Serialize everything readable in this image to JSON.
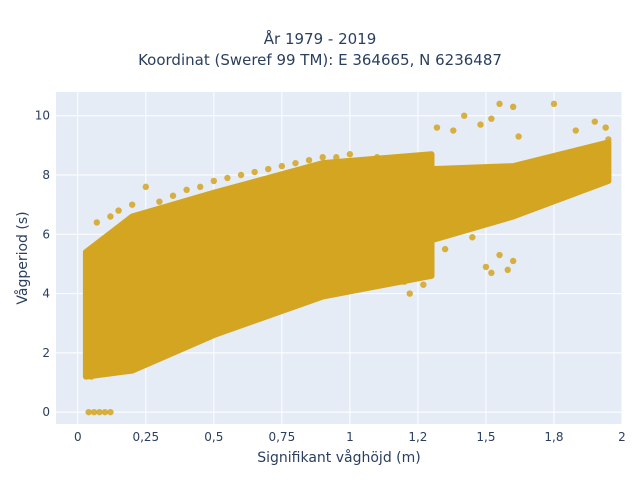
{
  "chart_data": {
    "type": "scatter",
    "title_line1": "År 1979 - 2019",
    "title_line2": "Koordinat (Sweref 99 TM): E 364665, N 6236487",
    "xlabel": "Signifikant våghöjd (m)",
    "ylabel": "Vågperiod (s)",
    "xlim": [
      -0.08,
      2.0
    ],
    "ylim": [
      -0.4,
      10.8
    ],
    "x_ticks": [
      0,
      0.25,
      0.5,
      0.75,
      1,
      1.25,
      1.5,
      1.75,
      2
    ],
    "x_tick_labels": [
      "0",
      "0,25",
      "0,5",
      "0,75",
      "1",
      "1,2",
      "1,5",
      "1,8",
      "2"
    ],
    "y_ticks": [
      0,
      2,
      4,
      6,
      8,
      10
    ],
    "y_tick_labels": [
      "0",
      "2",
      "4",
      "6",
      "8",
      "10"
    ],
    "grid": true,
    "marker_color": "#d4a520",
    "plot_background": "#e5ecf6",
    "points": [
      [
        0.04,
        0
      ],
      [
        0.06,
        0
      ],
      [
        0.08,
        0
      ],
      [
        0.1,
        0
      ],
      [
        0.12,
        0
      ],
      [
        0.05,
        1.2
      ],
      [
        0.06,
        1.6
      ],
      [
        0.05,
        2.2
      ],
      [
        0.07,
        2.8
      ],
      [
        0.06,
        3.4
      ],
      [
        0.07,
        4.1
      ],
      [
        0.05,
        4.6
      ],
      [
        0.06,
        5.2
      ],
      [
        0.08,
        5.6
      ],
      [
        0.07,
        6.4
      ],
      [
        0.12,
        6.6
      ],
      [
        0.15,
        6.8
      ],
      [
        0.18,
        6.2
      ],
      [
        0.2,
        7.0
      ],
      [
        0.25,
        7.6
      ],
      [
        0.22,
        5.9
      ],
      [
        0.1,
        1.3
      ],
      [
        0.15,
        1.5
      ],
      [
        0.2,
        1.6
      ],
      [
        0.25,
        1.9
      ],
      [
        0.3,
        2.1
      ],
      [
        0.35,
        2.3
      ],
      [
        0.4,
        2.5
      ],
      [
        0.45,
        2.7
      ],
      [
        0.5,
        3.0
      ],
      [
        0.55,
        3.1
      ],
      [
        0.6,
        3.3
      ],
      [
        0.65,
        3.5
      ],
      [
        0.7,
        3.7
      ],
      [
        0.75,
        3.8
      ],
      [
        0.8,
        3.9
      ],
      [
        0.85,
        4.0
      ],
      [
        0.9,
        4.1
      ],
      [
        0.95,
        4.2
      ],
      [
        1.0,
        4.3
      ],
      [
        1.05,
        4.5
      ],
      [
        1.1,
        4.6
      ],
      [
        1.15,
        4.7
      ],
      [
        1.2,
        4.4
      ],
      [
        1.25,
        4.9
      ],
      [
        0.3,
        7.1
      ],
      [
        0.35,
        7.3
      ],
      [
        0.4,
        7.5
      ],
      [
        0.45,
        7.6
      ],
      [
        0.5,
        7.8
      ],
      [
        0.55,
        7.9
      ],
      [
        0.6,
        8.0
      ],
      [
        0.65,
        8.1
      ],
      [
        0.7,
        8.2
      ],
      [
        0.75,
        8.3
      ],
      [
        0.8,
        8.4
      ],
      [
        0.85,
        8.5
      ],
      [
        0.9,
        8.6
      ],
      [
        0.95,
        8.6
      ],
      [
        1.0,
        8.7
      ],
      [
        1.05,
        8.5
      ],
      [
        1.1,
        8.6
      ],
      [
        1.15,
        8.4
      ],
      [
        1.2,
        8.5
      ],
      [
        1.25,
        8.6
      ],
      [
        1.3,
        7.3
      ],
      [
        1.35,
        7.4
      ],
      [
        1.4,
        7.5
      ],
      [
        1.45,
        7.6
      ],
      [
        1.5,
        7.7
      ],
      [
        1.55,
        7.8
      ],
      [
        1.6,
        7.9
      ],
      [
        1.65,
        8.0
      ],
      [
        1.7,
        8.1
      ],
      [
        1.75,
        8.2
      ],
      [
        1.8,
        8.4
      ],
      [
        1.85,
        8.6
      ],
      [
        1.9,
        8.8
      ],
      [
        1.95,
        9.2
      ],
      [
        1.32,
        9.6
      ],
      [
        1.38,
        9.5
      ],
      [
        1.42,
        10.0
      ],
      [
        1.48,
        9.7
      ],
      [
        1.52,
        9.9
      ],
      [
        1.55,
        10.4
      ],
      [
        1.6,
        10.3
      ],
      [
        1.62,
        9.3
      ],
      [
        1.75,
        10.4
      ],
      [
        1.83,
        9.5
      ],
      [
        1.9,
        9.8
      ],
      [
        1.94,
        9.6
      ],
      [
        1.5,
        4.9
      ],
      [
        1.52,
        4.7
      ],
      [
        1.58,
        4.8
      ],
      [
        1.6,
        5.1
      ],
      [
        1.55,
        5.3
      ],
      [
        1.45,
        5.9
      ],
      [
        1.4,
        6.1
      ],
      [
        1.35,
        5.5
      ],
      [
        1.3,
        5.0
      ],
      [
        1.27,
        4.3
      ],
      [
        1.22,
        4.0
      ],
      [
        1.45,
        6.9
      ],
      [
        1.5,
        7.0
      ],
      [
        1.4,
        6.8
      ],
      [
        1.35,
        6.7
      ],
      [
        1.3,
        6.6
      ],
      [
        1.6,
        7.2
      ],
      [
        1.7,
        7.5
      ],
      [
        1.8,
        7.8
      ],
      [
        1.88,
        8.2
      ],
      [
        0.3,
        5.6
      ],
      [
        0.4,
        5.5
      ],
      [
        0.5,
        6.1
      ],
      [
        0.6,
        6.2
      ],
      [
        0.7,
        6.4
      ],
      [
        0.8,
        6.5
      ],
      [
        0.9,
        6.7
      ],
      [
        1.0,
        6.9
      ],
      [
        1.1,
        7.0
      ],
      [
        1.2,
        7.2
      ],
      [
        0.2,
        3.2
      ],
      [
        0.3,
        3.8
      ],
      [
        0.4,
        4.4
      ],
      [
        0.5,
        4.6
      ],
      [
        0.6,
        4.9
      ],
      [
        0.7,
        5.2
      ],
      [
        0.8,
        5.4
      ],
      [
        0.9,
        5.6
      ],
      [
        1.0,
        5.8
      ],
      [
        1.1,
        6.0
      ]
    ],
    "dense_regions": [
      {
        "x": [
          0.03,
          0.2
        ],
        "y_low": [
          1.2,
          1.4
        ],
        "y_high": [
          5.4,
          6.6
        ]
      },
      {
        "x": [
          0.2,
          0.5
        ],
        "y_low": [
          1.4,
          2.6
        ],
        "y_high": [
          6.6,
          7.4
        ]
      },
      {
        "x": [
          0.5,
          0.9
        ],
        "y_low": [
          2.6,
          3.9
        ],
        "y_high": [
          7.4,
          8.4
        ]
      },
      {
        "x": [
          0.9,
          1.3
        ],
        "y_low": [
          3.9,
          4.6
        ],
        "y_high": [
          8.4,
          8.7
        ]
      },
      {
        "x": [
          1.3,
          1.6
        ],
        "y_low": [
          5.8,
          6.6
        ],
        "y_high": [
          8.2,
          8.3
        ]
      },
      {
        "x": [
          1.6,
          1.95
        ],
        "y_low": [
          6.6,
          7.8
        ],
        "y_high": [
          8.3,
          9.1
        ]
      }
    ]
  }
}
